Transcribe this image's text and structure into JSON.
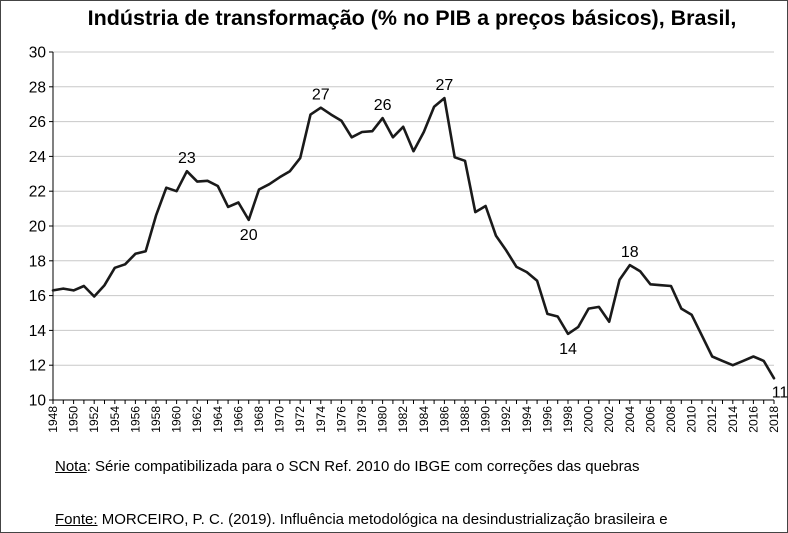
{
  "chart_data": {
    "type": "line",
    "title": "Indústria de transformação (% no PIB a preços básicos), Brasil,",
    "xlabel": "",
    "ylabel": "",
    "ylim": [
      10,
      30
    ],
    "yticks": [
      "10",
      "12",
      "14",
      "16",
      "18",
      "20",
      "22",
      "24",
      "26",
      "28",
      "30"
    ],
    "xlim": [
      1948,
      2018
    ],
    "xticks": [
      "1948",
      "1950",
      "1952",
      "1954",
      "1956",
      "1958",
      "1960",
      "1962",
      "1964",
      "1966",
      "1968",
      "1970",
      "1972",
      "1974",
      "1976",
      "1978",
      "1980",
      "1982",
      "1984",
      "1986",
      "1988",
      "1990",
      "1992",
      "1994",
      "1996",
      "1998",
      "2000",
      "2002",
      "2004",
      "2006",
      "2008",
      "2010",
      "2012",
      "2014",
      "2016",
      "2018"
    ],
    "grid": "horizontal",
    "line_color": "#1a1a1a",
    "series": [
      {
        "x": [
          1948,
          1949,
          1950,
          1951,
          1952,
          1953,
          1954,
          1955,
          1956,
          1957,
          1958,
          1959,
          1960,
          1961,
          1962,
          1963,
          1964,
          1965,
          1966,
          1967,
          1968,
          1969,
          1970,
          1971,
          1972,
          1973,
          1974,
          1975,
          1976,
          1977,
          1978,
          1979,
          1980,
          1981,
          1982,
          1983,
          1984,
          1985,
          1986,
          1987,
          1988,
          1989,
          1990,
          1991,
          1992,
          1993,
          1994,
          1995,
          1996,
          1997,
          1998,
          1999,
          2000,
          2001,
          2002,
          2003,
          2004,
          2005,
          2006,
          2007,
          2008,
          2009,
          2010,
          2011,
          2012,
          2013,
          2014,
          2015,
          2016,
          2017,
          2018
        ],
        "y": [
          16.3,
          16.4,
          16.3,
          16.55,
          15.95,
          16.6,
          17.6,
          17.8,
          18.4,
          18.55,
          20.6,
          22.2,
          22.0,
          23.15,
          22.55,
          22.6,
          22.3,
          21.1,
          21.35,
          20.35,
          22.1,
          22.4,
          22.8,
          23.15,
          23.9,
          26.4,
          26.8,
          26.4,
          26.05,
          25.1,
          25.4,
          25.45,
          26.2,
          25.1,
          25.7,
          24.3,
          25.4,
          26.85,
          27.35,
          23.95,
          23.75,
          20.8,
          21.15,
          19.45,
          18.6,
          17.65,
          17.35,
          16.85,
          14.95,
          14.8,
          13.8,
          14.2,
          15.25,
          15.35,
          14.5,
          16.9,
          17.75,
          17.4,
          16.65,
          16.6,
          16.55,
          15.25,
          14.9,
          13.7,
          12.5,
          12.25,
          12.0,
          12.25,
          12.5,
          12.25,
          11.25
        ]
      }
    ],
    "annotations": [
      {
        "x": 1961,
        "y": 23.15,
        "label": "23",
        "pos": "above"
      },
      {
        "x": 1967,
        "y": 20.35,
        "label": "20",
        "pos": "below"
      },
      {
        "x": 1974,
        "y": 26.8,
        "label": "27",
        "pos": "above"
      },
      {
        "x": 1980,
        "y": 26.2,
        "label": "26",
        "pos": "above"
      },
      {
        "x": 1986,
        "y": 27.35,
        "label": "27",
        "pos": "above"
      },
      {
        "x": 1998,
        "y": 13.8,
        "label": "14",
        "pos": "below"
      },
      {
        "x": 2004,
        "y": 17.75,
        "label": "18",
        "pos": "above"
      },
      {
        "x": 2018,
        "y": 11.25,
        "label": "11",
        "pos": "below-right"
      }
    ]
  },
  "note": {
    "label": "Nota",
    "text": ": Série compatibilizada para o SCN Ref. 2010 do IBGE com correções das quebras"
  },
  "source": {
    "label": "Fonte:",
    "text": " MORCEIRO, P. C. (2019). Influência metodológica na desindustrialização brasileira e"
  }
}
